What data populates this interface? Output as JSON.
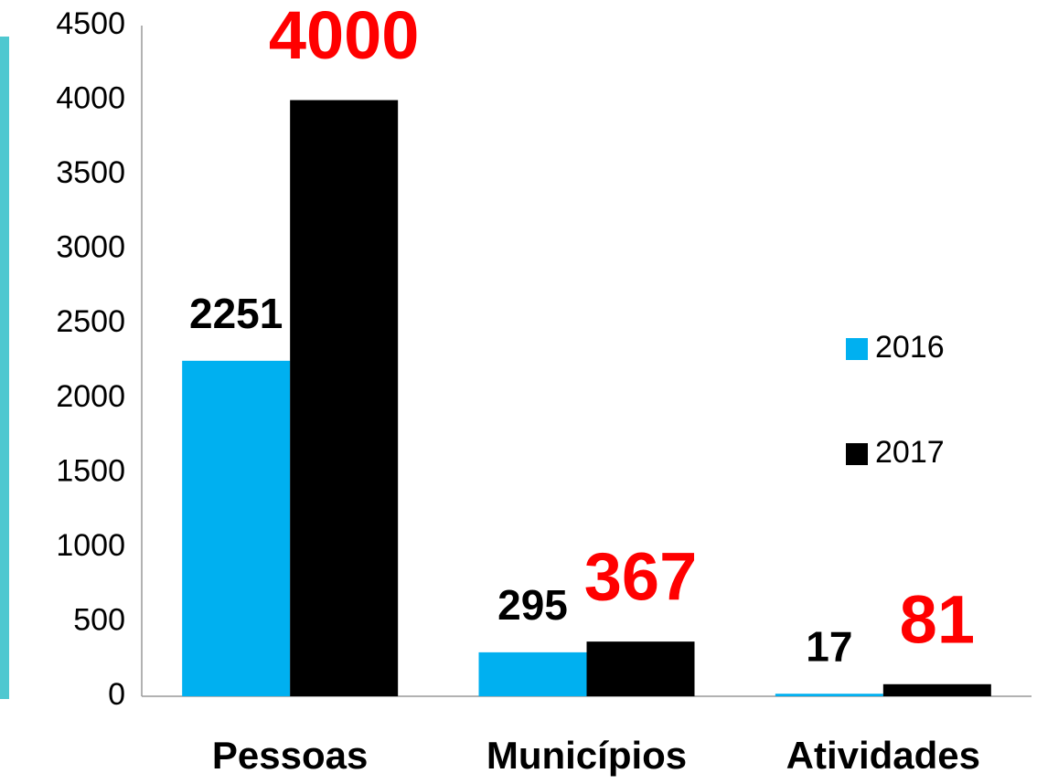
{
  "chart_data": {
    "type": "bar",
    "categories": [
      "Pessoas",
      "Municípios",
      "Atividades"
    ],
    "series": [
      {
        "name": "2016",
        "color": "#00b0f0",
        "label_color": "#000000",
        "values": [
          2251,
          295,
          17
        ]
      },
      {
        "name": "2017",
        "color": "#000000",
        "label_color": "#ff0000",
        "values": [
          4000,
          367,
          81
        ]
      }
    ],
    "ylim": [
      0,
      4500
    ],
    "yticks": [
      0,
      500,
      1000,
      1500,
      2000,
      2500,
      3000,
      3500,
      4000,
      4500
    ],
    "grid": false,
    "legend": "right"
  }
}
